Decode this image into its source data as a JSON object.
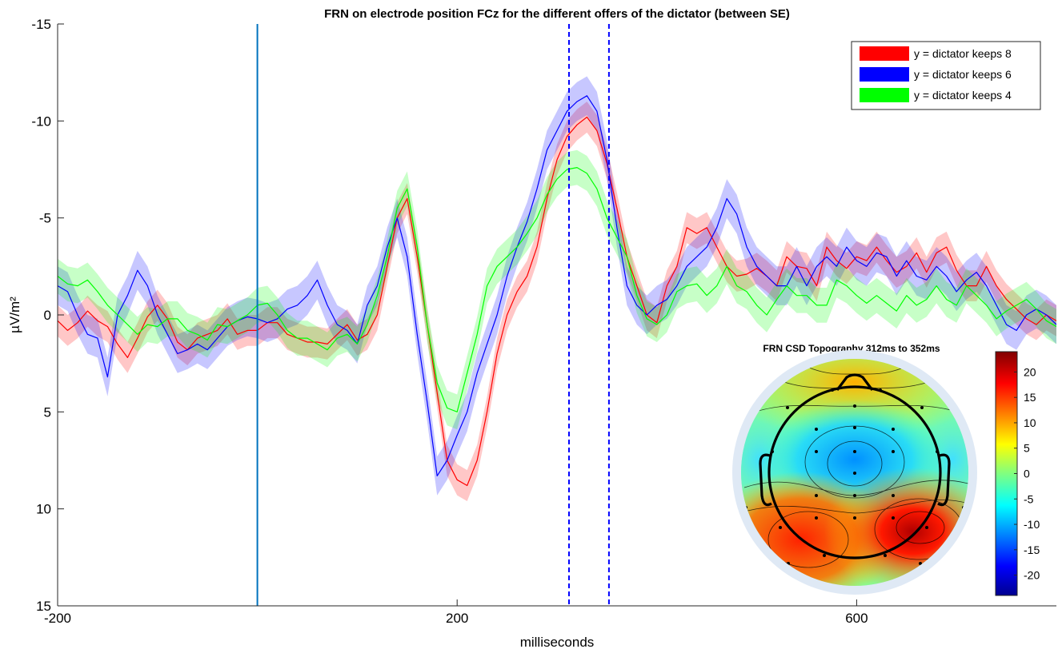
{
  "chart_data": [
    {
      "type": "line",
      "title": "FRN on electrode position FCz for the different offers of the dictator (between SE)",
      "xlabel": "milliseconds",
      "ylabel": "µV/m²",
      "xlim": [
        -200,
        800
      ],
      "ylim": [
        -15,
        15
      ],
      "y_reversed": true,
      "x_ticks": [
        -200,
        200,
        600
      ],
      "y_ticks": [
        -15,
        -10,
        -5,
        0,
        5,
        10,
        15
      ],
      "grid": false,
      "legend_position": "top-right",
      "shading": "standard error band around each series",
      "vertical_lines": [
        {
          "x": 0,
          "style": "solid",
          "color": "#0072bd"
        },
        {
          "x": 312,
          "style": "dashed",
          "color": "#0000ff"
        },
        {
          "x": 352,
          "style": "dashed",
          "color": "#0000ff"
        }
      ],
      "x": [
        -200,
        -190,
        -180,
        -170,
        -160,
        -150,
        -140,
        -130,
        -120,
        -110,
        -100,
        -90,
        -80,
        -70,
        -60,
        -50,
        -40,
        -30,
        -20,
        -10,
        0,
        10,
        20,
        30,
        40,
        50,
        60,
        70,
        80,
        90,
        100,
        110,
        120,
        130,
        140,
        150,
        160,
        170,
        180,
        190,
        200,
        210,
        220,
        230,
        240,
        250,
        260,
        270,
        280,
        290,
        300,
        310,
        320,
        330,
        340,
        350,
        360,
        370,
        380,
        390,
        400,
        410,
        420,
        430,
        440,
        450,
        460,
        470,
        480,
        490,
        500,
        510,
        520,
        530,
        540,
        550,
        560,
        570,
        580,
        590,
        600,
        610,
        620,
        630,
        640,
        650,
        660,
        670,
        680,
        690,
        700,
        710,
        720,
        730,
        740,
        750,
        760,
        770,
        780,
        790,
        800
      ],
      "series": [
        {
          "name": "y = dictator keeps 8",
          "color": "#ff0000",
          "band_color": "rgba(255,0,0,0.22)",
          "se": 0.8,
          "values": [
            0.3,
            0.8,
            0.4,
            -0.2,
            0.3,
            0.6,
            1.5,
            2.2,
            1.2,
            0.1,
            -0.5,
            0.2,
            1.4,
            1.8,
            1.2,
            1.0,
            0.8,
            0.2,
            1.0,
            0.8,
            0.8,
            0.4,
            0.4,
            1.0,
            1.2,
            1.4,
            1.4,
            1.5,
            1.0,
            0.5,
            1.3,
            1.0,
            0.0,
            -2.5,
            -5.0,
            -6.0,
            -3.0,
            0.5,
            4.0,
            7.5,
            8.5,
            8.8,
            7.5,
            5.0,
            2.0,
            0.0,
            -1.2,
            -2.0,
            -3.5,
            -6.0,
            -8.0,
            -9.2,
            -9.8,
            -10.2,
            -9.5,
            -7.8,
            -5.5,
            -3.0,
            -1.5,
            0.0,
            0.4,
            -1.5,
            -2.5,
            -4.5,
            -4.2,
            -4.5,
            -3.5,
            -2.5,
            -2.0,
            -2.1,
            -2.4,
            -2.0,
            -1.5,
            -3.0,
            -2.5,
            -2.4,
            -1.5,
            -3.5,
            -2.8,
            -2.4,
            -3.0,
            -2.8,
            -3.5,
            -2.8,
            -2.2,
            -2.5,
            -3.2,
            -2.2,
            -3.2,
            -3.5,
            -2.3,
            -1.5,
            -1.5,
            -2.5,
            -1.5,
            -0.8,
            -0.3,
            0.2,
            0.5,
            0.0,
            0.3
          ]
        },
        {
          "name": "y = dictator keeps 6",
          "color": "#0000ff",
          "band_color": "rgba(0,0,255,0.22)",
          "se": 1.0,
          "values": [
            -1.5,
            -1.2,
            0.0,
            1.0,
            1.2,
            3.2,
            0.0,
            -1.0,
            -2.3,
            -1.5,
            0.0,
            1.0,
            2.0,
            1.8,
            1.5,
            1.8,
            1.2,
            0.6,
            0.3,
            0.1,
            0.2,
            0.4,
            0.2,
            -0.3,
            -0.5,
            -1.0,
            -1.8,
            -0.5,
            0.5,
            0.8,
            1.5,
            -0.5,
            -1.5,
            -3.5,
            -5.0,
            -3.0,
            1.0,
            4.5,
            8.3,
            7.5,
            6.2,
            5.0,
            3.0,
            1.5,
            0.0,
            -2.0,
            -3.5,
            -4.8,
            -6.5,
            -8.5,
            -9.5,
            -10.5,
            -11.0,
            -11.3,
            -10.5,
            -8.0,
            -4.5,
            -1.5,
            -0.5,
            0.0,
            -0.5,
            -0.8,
            -1.5,
            -2.5,
            -3.0,
            -3.5,
            -4.5,
            -6.0,
            -5.2,
            -3.5,
            -2.5,
            -2.0,
            -1.5,
            -1.5,
            -2.5,
            -1.5,
            -2.5,
            -3.0,
            -2.5,
            -3.5,
            -2.8,
            -2.5,
            -3.2,
            -3.0,
            -2.0,
            -2.8,
            -2.0,
            -1.8,
            -2.5,
            -2.0,
            -1.2,
            -1.8,
            -2.2,
            -1.5,
            -0.5,
            0.5,
            0.8,
            0.0,
            -0.3,
            0.0,
            0.5
          ]
        },
        {
          "name": "y = dictator keeps 4",
          "color": "#00ff00",
          "band_color": "rgba(0,255,0,0.22)",
          "se": 0.9,
          "values": [
            -2.0,
            -1.6,
            -1.5,
            -1.8,
            -1.2,
            -0.5,
            0.0,
            0.5,
            1.0,
            0.5,
            0.6,
            0.2,
            0.2,
            0.8,
            1.0,
            1.3,
            0.5,
            0.6,
            0.3,
            0.0,
            -0.5,
            -0.6,
            0.0,
            0.8,
            1.2,
            1.2,
            1.5,
            1.8,
            1.2,
            1.0,
            1.5,
            0.5,
            -1.0,
            -3.0,
            -5.5,
            -6.5,
            -3.5,
            0.5,
            3.5,
            4.8,
            5.0,
            3.0,
            1.0,
            -1.5,
            -2.5,
            -3.0,
            -3.5,
            -4.2,
            -5.0,
            -6.2,
            -7.0,
            -7.5,
            -7.6,
            -7.3,
            -6.5,
            -5.0,
            -4.0,
            -3.0,
            -1.0,
            0.2,
            0.5,
            0.0,
            -1.2,
            -1.5,
            -1.6,
            -1.0,
            -1.5,
            -2.5,
            -1.5,
            -1.2,
            -0.5,
            0.0,
            -0.8,
            -1.5,
            -1.0,
            -1.0,
            -0.5,
            -0.5,
            -1.8,
            -1.5,
            -1.0,
            -0.6,
            -1.0,
            -0.6,
            -0.2,
            -1.0,
            -0.5,
            -0.8,
            -1.5,
            -0.8,
            -0.5,
            -1.5,
            -1.0,
            -0.5,
            0.2,
            -0.2,
            -0.5,
            -0.8,
            -0.3,
            0.3,
            0.6
          ]
        }
      ]
    },
    {
      "type": "heatmap",
      "title": "FRN CSD Topography 312ms to 352ms",
      "colorbar": {
        "range": [
          -24,
          24
        ],
        "ticks": [
          20,
          15,
          10,
          5,
          0,
          -5,
          -10,
          -15,
          -20
        ],
        "colormap": "jet"
      },
      "description_regions": [
        {
          "region": "frontal",
          "approx_value": 12
        },
        {
          "region": "fronto-central",
          "approx_value": -8
        },
        {
          "region": "parietal-left",
          "approx_value": 17
        },
        {
          "region": "parietal-right",
          "approx_value": 22
        }
      ]
    }
  ]
}
